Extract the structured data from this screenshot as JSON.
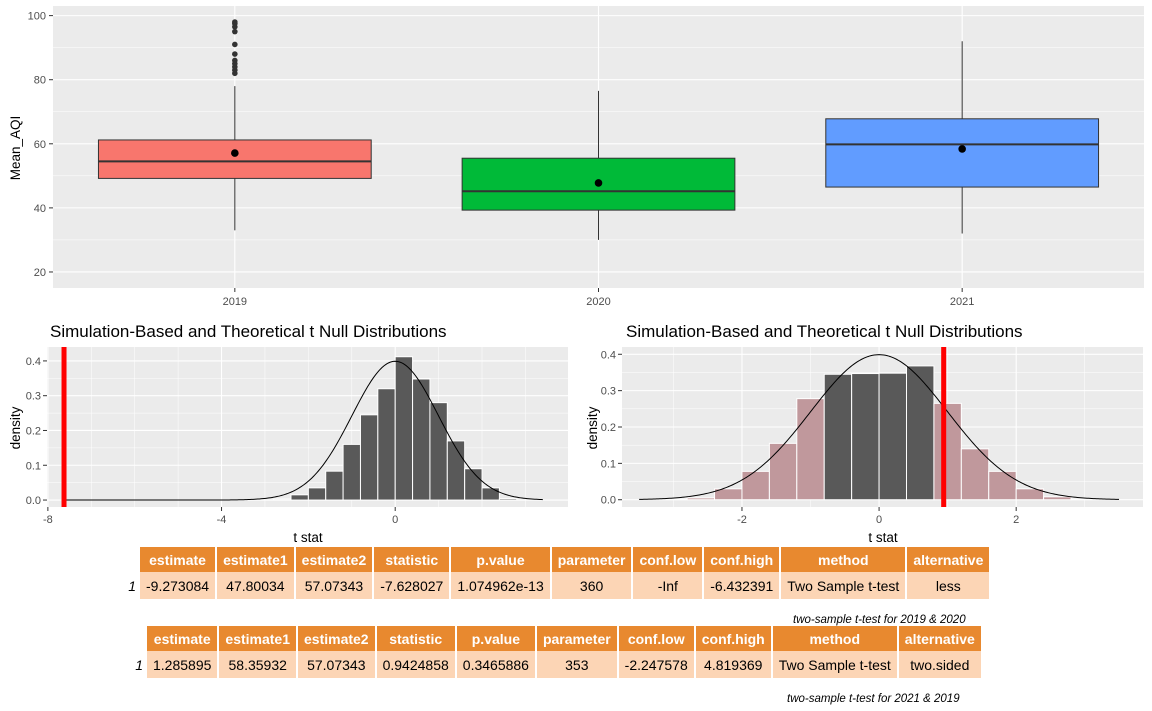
{
  "chart_data": [
    {
      "type": "boxplot",
      "title": "",
      "xlabel": "",
      "ylabel": "Mean_AQI",
      "ylim": [
        15,
        103
      ],
      "yticks": [
        20,
        40,
        60,
        80,
        100
      ],
      "grid": true,
      "categories": [
        "2019",
        "2020",
        "2021"
      ],
      "boxes": [
        {
          "category": "2019",
          "color": "#F8766D",
          "min": 33,
          "q1": 49.2,
          "median": 54.5,
          "q3": 61.2,
          "max": 78,
          "mean": 57.1,
          "outliers": [
            82,
            83,
            84,
            85,
            86,
            88,
            91,
            95,
            96.5,
            97.5,
            98
          ]
        },
        {
          "category": "2020",
          "color": "#00BA38",
          "min": 30,
          "q1": 39.3,
          "median": 45.2,
          "q3": 55.5,
          "max": 76.5,
          "mean": 47.8,
          "outliers": []
        },
        {
          "category": "2021",
          "color": "#619CFF",
          "min": 32,
          "q1": 46.5,
          "median": 59.8,
          "q3": 67.8,
          "max": 92,
          "mean": 58.4,
          "outliers": []
        }
      ]
    },
    {
      "type": "histogram",
      "title": "Simulation-Based and Theoretical t Null Distributions",
      "xlabel": "t stat",
      "ylabel": "density",
      "xlim": [
        -8.02,
        3.98
      ],
      "ylim": [
        -0.02,
        0.44
      ],
      "xticks": [
        -8,
        -4,
        0
      ],
      "yticks": [
        0.0,
        0.1,
        0.2,
        0.3,
        0.4
      ],
      "grid": true,
      "bin_width": 0.4,
      "bins": [
        {
          "x": -3.4,
          "y": 0.0
        },
        {
          "x": -3.0,
          "y": 0.0
        },
        {
          "x": -2.6,
          "y": 0.003
        },
        {
          "x": -2.2,
          "y": 0.015
        },
        {
          "x": -1.8,
          "y": 0.035
        },
        {
          "x": -1.4,
          "y": 0.083
        },
        {
          "x": -1.0,
          "y": 0.16
        },
        {
          "x": -0.6,
          "y": 0.245
        },
        {
          "x": -0.2,
          "y": 0.32
        },
        {
          "x": 0.2,
          "y": 0.412
        },
        {
          "x": 0.6,
          "y": 0.348
        },
        {
          "x": 1.0,
          "y": 0.28
        },
        {
          "x": 1.4,
          "y": 0.17
        },
        {
          "x": 1.8,
          "y": 0.09
        },
        {
          "x": 2.2,
          "y": 0.035
        },
        {
          "x": 2.6,
          "y": 0.004
        },
        {
          "x": 3.0,
          "y": 0.0
        }
      ],
      "shaded": false,
      "obs_stat": -7.628027,
      "obs_color": "#FF0000",
      "bar_color": "#595959",
      "curve_range": [
        -7.6,
        3.4
      ]
    },
    {
      "type": "histogram",
      "title": "Simulation-Based and Theoretical t Null Distributions",
      "xlabel": "t stat",
      "ylabel": "density",
      "xlim": [
        -3.75,
        3.85
      ],
      "ylim": [
        -0.02,
        0.42
      ],
      "xticks": [
        -2,
        0,
        2
      ],
      "yticks": [
        0.0,
        0.1,
        0.2,
        0.3,
        0.4
      ],
      "grid": true,
      "bin_width": 0.4,
      "bins": [
        {
          "x": -3.0,
          "y": 0.002
        },
        {
          "x": -2.6,
          "y": 0.005
        },
        {
          "x": -2.2,
          "y": 0.03
        },
        {
          "x": -1.8,
          "y": 0.078
        },
        {
          "x": -1.4,
          "y": 0.155
        },
        {
          "x": -1.0,
          "y": 0.278
        },
        {
          "x": -0.6,
          "y": 0.345
        },
        {
          "x": -0.2,
          "y": 0.347
        },
        {
          "x": 0.2,
          "y": 0.348
        },
        {
          "x": 0.6,
          "y": 0.368
        },
        {
          "x": 0.8,
          "y": 0.0
        },
        {
          "x": 1.0,
          "y": 0.265
        },
        {
          "x": 1.4,
          "y": 0.14
        },
        {
          "x": 1.8,
          "y": 0.078
        },
        {
          "x": 2.2,
          "y": 0.03
        },
        {
          "x": 2.6,
          "y": 0.008
        },
        {
          "x": 3.0,
          "y": 0.002
        }
      ],
      "shaded": true,
      "shade_color": "#C0989C",
      "shade_abs_above": 0.94,
      "obs_stat": 0.9424858,
      "obs_color": "#FF0000",
      "bar_color": "#595959",
      "curve_range": [
        -3.5,
        3.5
      ]
    }
  ],
  "tables": [
    {
      "headers": [
        "estimate",
        "estimate1",
        "estimate2",
        "statistic",
        "p.value",
        "parameter",
        "conf.low",
        "conf.high",
        "method",
        "alternative"
      ],
      "row_index": "1",
      "row": [
        "-9.273084",
        "47.80034",
        "57.07343",
        "-7.628027",
        "1.074962e-13",
        "360",
        "-Inf",
        "-6.432391",
        "Two Sample t-test",
        "less"
      ],
      "caption": "two-sample t-test for 2019 & 2020"
    },
    {
      "headers": [
        "estimate",
        "estimate1",
        "estimate2",
        "statistic",
        "p.value",
        "parameter",
        "conf.low",
        "conf.high",
        "method",
        "alternative"
      ],
      "row_index": "1",
      "row": [
        "1.285895",
        "58.35932",
        "57.07343",
        "0.9424858",
        "0.3465886",
        "353",
        "-2.247578",
        "4.819369",
        "Two Sample t-test",
        "two.sided"
      ],
      "caption": "two-sample t-test for 2021 & 2019"
    }
  ],
  "colors": {
    "panel_bg": "#EBEBEB",
    "grid": "#FFFFFF",
    "header_orange": "#E8892F",
    "cell_peach": "#FCD5B5"
  }
}
